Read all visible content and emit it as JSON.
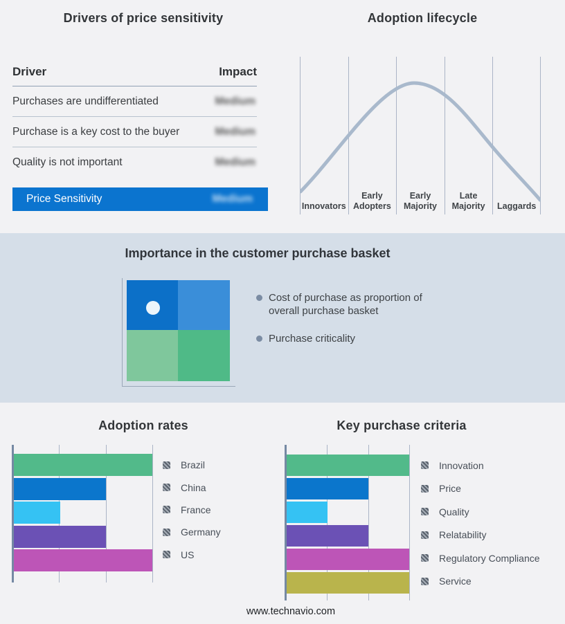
{
  "page": {
    "footer": "www.technavio.com"
  },
  "colors": {
    "background": "#f2f2f4",
    "band_background": "#d5dee8",
    "accent_blue": "#0b74cf",
    "curve_line": "#a9b9cc",
    "gridline": "#aab4c6",
    "axis": "#7589a3",
    "bullet_dot": "#7b8ca3",
    "legend_swatch_dark": "#59616c",
    "legend_swatch_light": "#a6adb6"
  },
  "drivers_panel": {
    "title": "Drivers of price sensitivity",
    "columns": [
      "Driver",
      "Impact"
    ],
    "rows": [
      {
        "driver": "Purchases are undifferentiated",
        "impact": "Medium",
        "redacted": true
      },
      {
        "driver": "Purchase is a key cost to the buyer",
        "impact": "Medium",
        "redacted": true
      },
      {
        "driver": "Quality is not important",
        "impact": "Medium",
        "redacted": true
      }
    ],
    "highlight_row": {
      "driver": "Price Sensitivity",
      "impact": "Medium",
      "redacted": true
    }
  },
  "basket_panel": {
    "title": "Importance in the customer purchase basket",
    "bullets": [
      "Cost of purchase as proportion of overall purchase basket",
      "Purchase criticality"
    ],
    "quadrant_colors": [
      "#0c70c8",
      "#3a8ed9",
      "#7fc79c",
      "#4fba87"
    ],
    "dot_color": "#ecf5fb"
  },
  "chart_data": [
    {
      "type": "line",
      "subtype": "bell-curve",
      "title": "Adoption lifecycle",
      "categories": [
        "Innovators",
        "Early Adopters",
        "Early Majority",
        "Late Majority",
        "Laggards"
      ],
      "peak_category": "Early Majority",
      "line_color": "#a9b9cc",
      "grid": true,
      "legend_position": "none"
    },
    {
      "type": "bar",
      "orientation": "horizontal",
      "title": "Adoption rates",
      "categories": [
        "Brazil",
        "China",
        "France",
        "Germany",
        "US"
      ],
      "values": [
        3,
        2,
        1,
        2,
        3
      ],
      "xlim": [
        0,
        3
      ],
      "colors": [
        "#52ba8a",
        "#0b76cc",
        "#35c2f3",
        "#6b51b5",
        "#bd55b7"
      ],
      "grid": true,
      "legend_position": "right"
    },
    {
      "type": "bar",
      "orientation": "horizontal",
      "title": "Key purchase criteria",
      "categories": [
        "Innovation",
        "Price",
        "Quality",
        "Relatability",
        "Regulatory Compliance",
        "Service"
      ],
      "values": [
        3,
        2,
        1,
        2,
        3,
        3
      ],
      "xlim": [
        0,
        3
      ],
      "colors": [
        "#52ba8a",
        "#0b76cc",
        "#35c2f3",
        "#6b51b5",
        "#bd55b7",
        "#b9b44c"
      ],
      "grid": true,
      "legend_position": "right"
    }
  ]
}
